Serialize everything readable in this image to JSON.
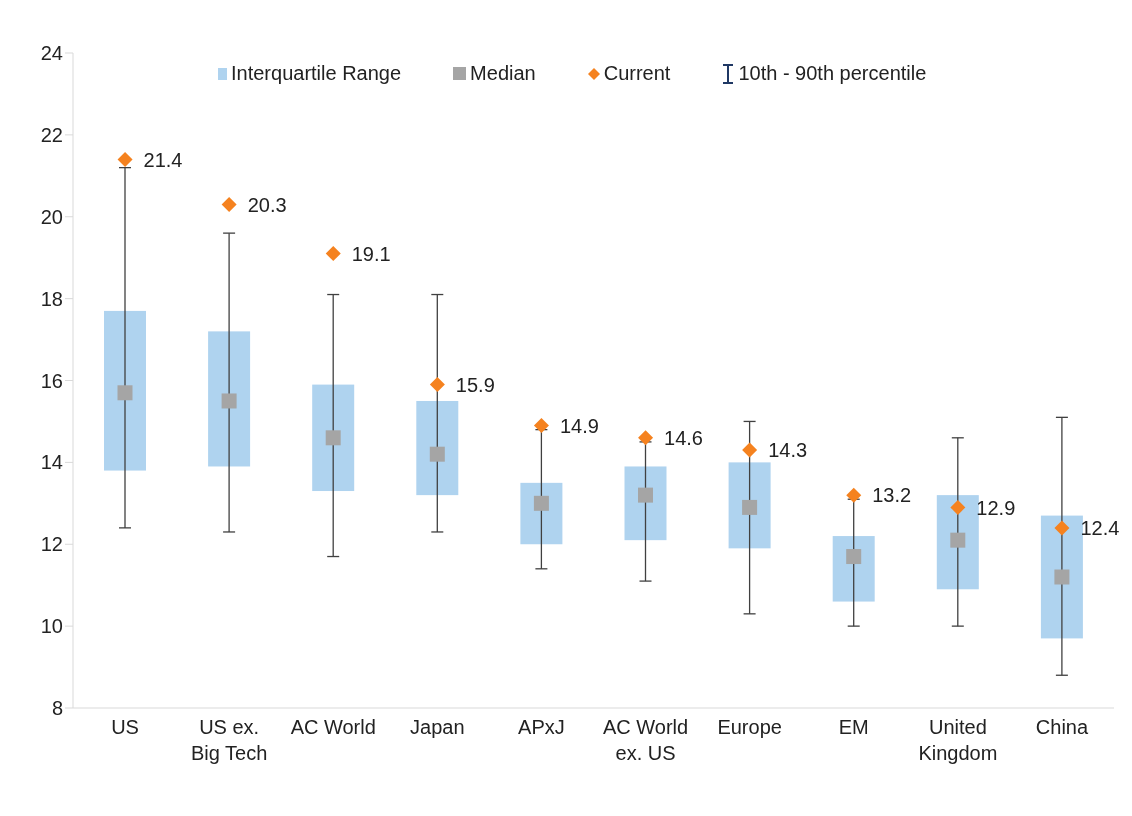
{
  "chart_data": {
    "type": "box",
    "categories": [
      "US",
      "US ex. Big Tech",
      "AC World",
      "Japan",
      "APxJ",
      "AC World ex. US",
      "Europe",
      "EM",
      "United Kingdom",
      "China"
    ],
    "series": [
      {
        "name": "Interquartile Range",
        "color": "#afd3ef",
        "boxes": [
          {
            "low": 12.4,
            "q1": 13.8,
            "median": 15.7,
            "q3": 17.7,
            "high": 21.2
          },
          {
            "low": 12.3,
            "q1": 13.9,
            "median": 15.5,
            "q3": 17.2,
            "high": 19.6
          },
          {
            "low": 11.7,
            "q1": 13.3,
            "median": 14.6,
            "q3": 15.9,
            "high": 18.1
          },
          {
            "low": 12.3,
            "q1": 13.2,
            "median": 14.2,
            "q3": 15.5,
            "high": 18.1
          },
          {
            "low": 11.4,
            "q1": 12.0,
            "median": 13.0,
            "q3": 13.5,
            "high": 14.8
          },
          {
            "low": 11.1,
            "q1": 12.1,
            "median": 13.2,
            "q3": 13.9,
            "high": 14.5
          },
          {
            "low": 10.3,
            "q1": 11.9,
            "median": 12.9,
            "q3": 14.0,
            "high": 15.0
          },
          {
            "low": 10.0,
            "q1": 10.6,
            "median": 11.7,
            "q3": 12.2,
            "high": 13.1
          },
          {
            "low": 10.0,
            "q1": 10.9,
            "median": 12.1,
            "q3": 13.2,
            "high": 14.6
          },
          {
            "low": 8.8,
            "q1": 9.7,
            "median": 11.2,
            "q3": 12.7,
            "high": 15.1
          }
        ]
      },
      {
        "type": "scatter",
        "name": "Current",
        "color": "#f5821f",
        "marker": "diamond",
        "values": [
          21.4,
          20.3,
          19.1,
          15.9,
          14.9,
          14.6,
          14.3,
          13.2,
          12.9,
          12.4
        ],
        "data_labels": true
      }
    ],
    "annotations": [
      "Median",
      "10th - 90th percentile"
    ],
    "ylim": [
      8,
      24
    ],
    "yticks": [
      8,
      10,
      12,
      14,
      16,
      18,
      20,
      22,
      24
    ],
    "legend": "top"
  }
}
